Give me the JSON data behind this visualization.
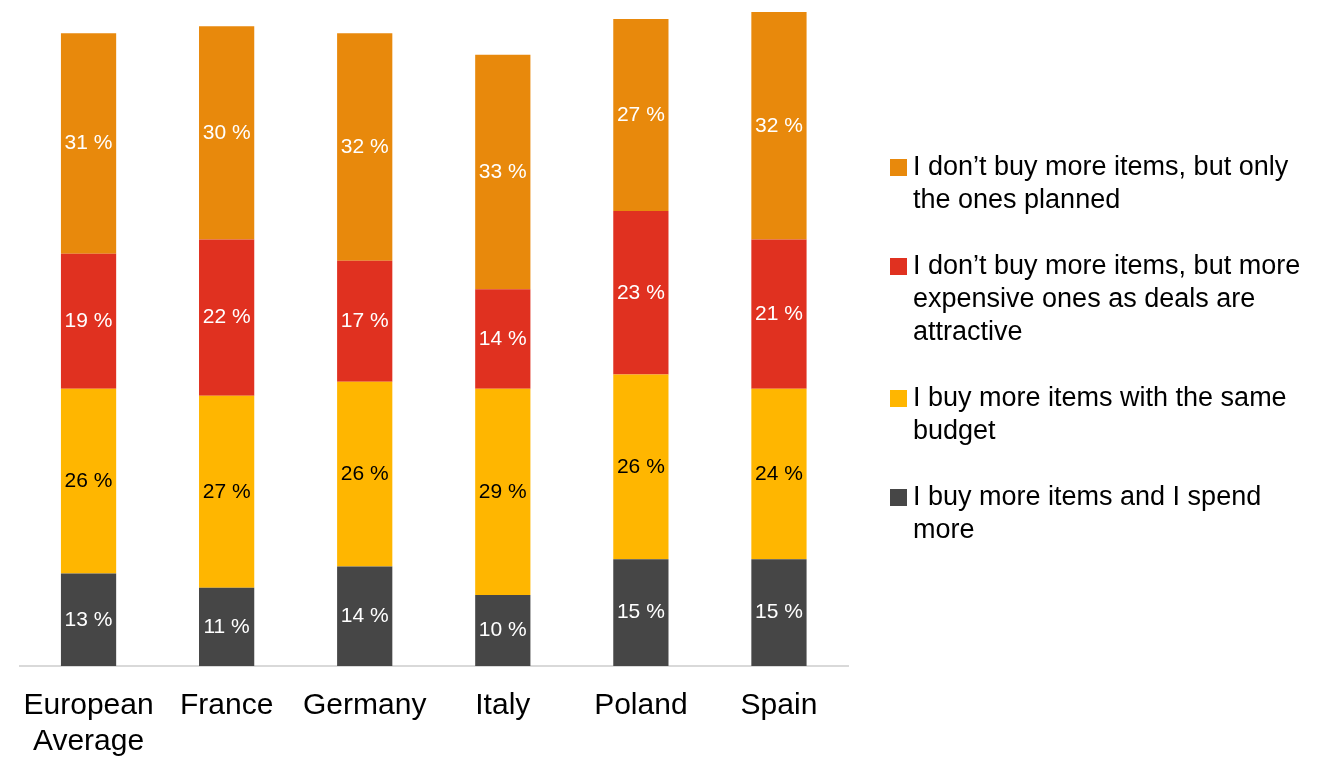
{
  "chart_data": {
    "type": "bar",
    "stacked": true,
    "legend": "right",
    "grid": false,
    "categories": [
      "European Average",
      "France",
      "Germany",
      "Italy",
      "Poland",
      "Spain"
    ],
    "series": [
      {
        "name": "I buy more items and I spend more",
        "color": "#464646",
        "values": [
          13,
          11,
          14,
          10,
          15,
          15
        ],
        "value_labels": [
          "13 %",
          "11 %",
          "14 %",
          "10 %",
          "15 %",
          "15 %"
        ]
      },
      {
        "name": "I buy more items with the same budget",
        "color": "#ffb600",
        "values": [
          26,
          27,
          26,
          29,
          26,
          24
        ],
        "value_labels": [
          "26 %",
          "27 %",
          "26 %",
          "29 %",
          "26 %",
          "24 %"
        ]
      },
      {
        "name": "I don’t buy more items, but more expensive ones as deals are attractive",
        "color": "#e03120",
        "values": [
          19,
          22,
          17,
          14,
          23,
          21
        ],
        "value_labels": [
          "19 %",
          "22 %",
          "17 %",
          "14 %",
          "23 %",
          "21 %"
        ]
      },
      {
        "name": "I don’t buy more items, but only the ones planned",
        "color": "#e8890c",
        "values": [
          31,
          30,
          32,
          33,
          27,
          32
        ],
        "value_labels": [
          "31 %",
          "30 %",
          "32 %",
          "33 %",
          "27 %",
          "32 %"
        ]
      }
    ]
  }
}
